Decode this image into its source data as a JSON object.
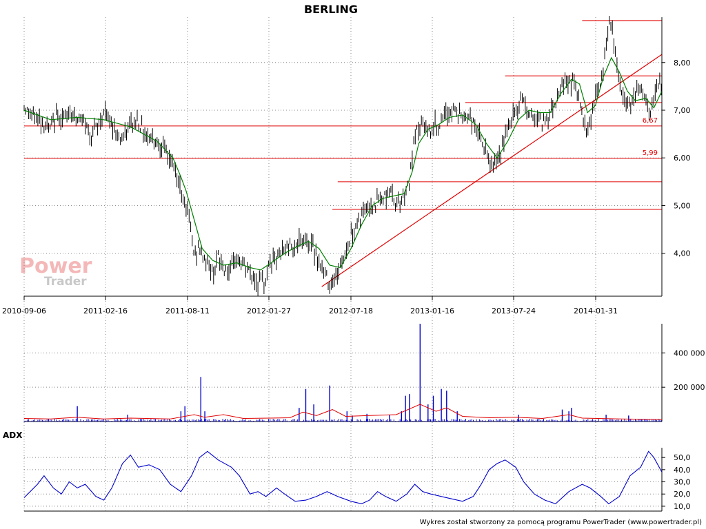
{
  "title": "BERLING",
  "footer": "Wykres został stworzony za pomocą programu PowerTrader (www.powertrader.pl)",
  "watermark": {
    "line1": "Power",
    "line2": "Trader"
  },
  "colors": {
    "price": "#000000",
    "sma": "#008000",
    "level": "#e00000",
    "volume": "#0000cc",
    "volume_avg": "#e00000",
    "adx": "#0000cc",
    "grid": "#888888"
  },
  "chart_data": [
    {
      "type": "line",
      "name": "price",
      "x_ticks": [
        "2010-09-06",
        "2011-02-16",
        "2011-08-11",
        "2012-01-27",
        "2012-07-18",
        "2013-01-16",
        "2013-07-24",
        "2014-01-31"
      ],
      "y_ticks": [
        "4,00",
        "5,00",
        "6,00",
        "7,00",
        "8,00"
      ],
      "ylim": [
        3.1,
        8.95
      ],
      "grid": true,
      "price_path": [
        [
          0,
          7.1
        ],
        [
          4,
          6.9
        ],
        [
          10,
          6.85
        ],
        [
          15,
          6.7
        ],
        [
          20,
          6.6
        ],
        [
          25,
          6.9
        ],
        [
          30,
          6.8
        ],
        [
          35,
          7.0
        ],
        [
          40,
          6.8
        ],
        [
          45,
          6.75
        ],
        [
          50,
          6.5
        ],
        [
          55,
          6.65
        ],
        [
          60,
          6.95
        ],
        [
          65,
          6.75
        ],
        [
          70,
          6.5
        ],
        [
          75,
          6.4
        ],
        [
          80,
          6.7
        ],
        [
          85,
          6.8
        ],
        [
          90,
          6.55
        ],
        [
          95,
          6.45
        ],
        [
          100,
          6.35
        ],
        [
          105,
          6.2
        ],
        [
          110,
          5.95
        ],
        [
          115,
          5.6
        ],
        [
          120,
          5.2
        ],
        [
          123,
          4.9
        ],
        [
          126,
          4.4
        ],
        [
          128,
          3.95
        ],
        [
          132,
          4.1
        ],
        [
          138,
          3.8
        ],
        [
          142,
          3.6
        ],
        [
          146,
          3.9
        ],
        [
          150,
          3.7
        ],
        [
          155,
          3.55
        ],
        [
          160,
          3.9
        ],
        [
          165,
          3.75
        ],
        [
          170,
          3.6
        ],
        [
          175,
          3.4
        ],
        [
          180,
          3.35
        ],
        [
          185,
          3.8
        ],
        [
          190,
          3.9
        ],
        [
          195,
          4.05
        ],
        [
          200,
          4.2
        ],
        [
          205,
          4.15
        ],
        [
          210,
          4.3
        ],
        [
          215,
          4.2
        ],
        [
          220,
          4.0
        ],
        [
          225,
          3.6
        ],
        [
          230,
          3.4
        ],
        [
          235,
          3.5
        ],
        [
          240,
          3.9
        ],
        [
          245,
          4.3
        ],
        [
          250,
          4.6
        ],
        [
          255,
          4.85
        ],
        [
          260,
          5.0
        ],
        [
          265,
          5.1
        ],
        [
          270,
          5.15
        ],
        [
          275,
          5.3
        ],
        [
          280,
          5.05
        ],
        [
          285,
          5.2
        ],
        [
          290,
          5.5
        ],
        [
          293,
          6.2
        ],
        [
          296,
          6.6
        ],
        [
          300,
          6.7
        ],
        [
          305,
          6.55
        ],
        [
          310,
          6.7
        ],
        [
          315,
          6.75
        ],
        [
          320,
          7.0
        ],
        [
          325,
          6.95
        ],
        [
          330,
          6.85
        ],
        [
          335,
          6.9
        ],
        [
          340,
          6.6
        ],
        [
          345,
          6.3
        ],
        [
          350,
          5.9
        ],
        [
          355,
          5.85
        ],
        [
          360,
          6.2
        ],
        [
          365,
          6.7
        ],
        [
          370,
          7.0
        ],
        [
          375,
          7.25
        ],
        [
          380,
          6.9
        ],
        [
          385,
          6.85
        ],
        [
          390,
          6.75
        ],
        [
          395,
          6.9
        ],
        [
          400,
          7.2
        ],
        [
          405,
          7.55
        ],
        [
          410,
          7.6
        ],
        [
          415,
          7.55
        ],
        [
          420,
          7.0
        ],
        [
          423,
          6.6
        ],
        [
          426,
          6.8
        ],
        [
          430,
          7.3
        ],
        [
          435,
          7.6
        ],
        [
          438,
          8.4
        ],
        [
          441,
          8.85
        ],
        [
          444,
          8.4
        ],
        [
          447,
          7.8
        ],
        [
          450,
          7.3
        ],
        [
          455,
          7.1
        ],
        [
          460,
          7.4
        ],
        [
          465,
          7.45
        ],
        [
          468,
          7.1
        ],
        [
          471,
          6.8
        ],
        [
          474,
          7.2
        ],
        [
          477,
          7.6
        ],
        [
          480,
          7.4
        ]
      ],
      "sma_path": [
        [
          0,
          7.0
        ],
        [
          20,
          6.8
        ],
        [
          40,
          6.85
        ],
        [
          60,
          6.8
        ],
        [
          80,
          6.65
        ],
        [
          100,
          6.35
        ],
        [
          112,
          6.0
        ],
        [
          118,
          5.6
        ],
        [
          122,
          5.3
        ],
        [
          128,
          4.7
        ],
        [
          134,
          4.1
        ],
        [
          142,
          3.85
        ],
        [
          150,
          3.75
        ],
        [
          160,
          3.8
        ],
        [
          170,
          3.7
        ],
        [
          178,
          3.65
        ],
        [
          186,
          3.8
        ],
        [
          196,
          4.0
        ],
        [
          206,
          4.15
        ],
        [
          214,
          4.25
        ],
        [
          222,
          4.1
        ],
        [
          230,
          3.75
        ],
        [
          238,
          3.7
        ],
        [
          246,
          4.1
        ],
        [
          254,
          4.6
        ],
        [
          262,
          5.0
        ],
        [
          270,
          5.15
        ],
        [
          278,
          5.2
        ],
        [
          286,
          5.25
        ],
        [
          292,
          5.7
        ],
        [
          297,
          6.3
        ],
        [
          304,
          6.6
        ],
        [
          312,
          6.7
        ],
        [
          320,
          6.85
        ],
        [
          330,
          6.9
        ],
        [
          340,
          6.7
        ],
        [
          348,
          6.3
        ],
        [
          356,
          6.0
        ],
        [
          364,
          6.35
        ],
        [
          372,
          6.8
        ],
        [
          380,
          7.0
        ],
        [
          388,
          6.95
        ],
        [
          396,
          6.95
        ],
        [
          404,
          7.35
        ],
        [
          412,
          7.65
        ],
        [
          418,
          7.55
        ],
        [
          424,
          6.95
        ],
        [
          430,
          7.1
        ],
        [
          436,
          7.7
        ],
        [
          442,
          8.1
        ],
        [
          448,
          7.8
        ],
        [
          454,
          7.4
        ],
        [
          460,
          7.2
        ],
        [
          468,
          7.25
        ],
        [
          474,
          7.05
        ],
        [
          480,
          7.4
        ]
      ],
      "horizontal_levels": [
        {
          "value": 8.88,
          "from": 420
        },
        {
          "value": 7.72,
          "from": 362
        },
        {
          "value": 7.16,
          "from": 332
        },
        {
          "value": 6.67,
          "from": 0,
          "label": "6,67"
        },
        {
          "value": 5.99,
          "from": 0,
          "label": "5,99"
        },
        {
          "value": 5.5,
          "from": 236
        },
        {
          "value": 4.92,
          "from": 232
        }
      ],
      "trendline": {
        "from": [
          224,
          3.3
        ],
        "to": [
          480,
          8.17
        ]
      }
    },
    {
      "type": "bar",
      "name": "volume",
      "y_ticks": [
        "200 000",
        "400 000"
      ],
      "ylim": [
        0,
        570000
      ],
      "spikes": [
        [
          40,
          90000
        ],
        [
          78,
          40000
        ],
        [
          118,
          60000
        ],
        [
          121,
          90000
        ],
        [
          133,
          260000
        ],
        [
          136,
          60000
        ],
        [
          207,
          80000
        ],
        [
          212,
          190000
        ],
        [
          218,
          100000
        ],
        [
          230,
          210000
        ],
        [
          243,
          60000
        ],
        [
          247,
          35000
        ],
        [
          258,
          45000
        ],
        [
          275,
          40000
        ],
        [
          284,
          60000
        ],
        [
          287,
          150000
        ],
        [
          290,
          160000
        ],
        [
          298,
          570000
        ],
        [
          304,
          100000
        ],
        [
          308,
          150000
        ],
        [
          314,
          190000
        ],
        [
          318,
          180000
        ],
        [
          326,
          60000
        ],
        [
          372,
          40000
        ],
        [
          405,
          70000
        ],
        [
          410,
          60000
        ],
        [
          412,
          80000
        ],
        [
          438,
          40000
        ],
        [
          455,
          35000
        ]
      ],
      "avg_path": [
        [
          0,
          18000
        ],
        [
          20,
          15000
        ],
        [
          40,
          25000
        ],
        [
          60,
          15000
        ],
        [
          80,
          20000
        ],
        [
          110,
          15000
        ],
        [
          128,
          40000
        ],
        [
          136,
          25000
        ],
        [
          150,
          40000
        ],
        [
          165,
          18000
        ],
        [
          185,
          20000
        ],
        [
          200,
          22000
        ],
        [
          210,
          55000
        ],
        [
          220,
          35000
        ],
        [
          232,
          70000
        ],
        [
          242,
          30000
        ],
        [
          260,
          35000
        ],
        [
          280,
          40000
        ],
        [
          298,
          100000
        ],
        [
          310,
          60000
        ],
        [
          318,
          80000
        ],
        [
          330,
          30000
        ],
        [
          350,
          22000
        ],
        [
          370,
          25000
        ],
        [
          390,
          18000
        ],
        [
          410,
          40000
        ],
        [
          420,
          20000
        ],
        [
          450,
          15000
        ],
        [
          480,
          12000
        ]
      ]
    },
    {
      "type": "line",
      "name": "ADX",
      "label": "ADX",
      "y_ticks": [
        "10,0",
        "20,0",
        "30,0",
        "40,0",
        "50,0"
      ],
      "ylim": [
        6,
        58
      ],
      "values_path": [
        [
          0,
          17
        ],
        [
          10,
          28
        ],
        [
          15,
          35
        ],
        [
          22,
          25
        ],
        [
          28,
          20
        ],
        [
          34,
          30
        ],
        [
          40,
          25
        ],
        [
          46,
          28
        ],
        [
          54,
          18
        ],
        [
          60,
          15
        ],
        [
          66,
          25
        ],
        [
          74,
          45
        ],
        [
          80,
          52
        ],
        [
          86,
          42
        ],
        [
          94,
          44
        ],
        [
          102,
          40
        ],
        [
          110,
          28
        ],
        [
          118,
          22
        ],
        [
          126,
          35
        ],
        [
          132,
          50
        ],
        [
          138,
          55
        ],
        [
          146,
          48
        ],
        [
          156,
          42
        ],
        [
          162,
          35
        ],
        [
          170,
          20
        ],
        [
          176,
          22
        ],
        [
          182,
          18
        ],
        [
          190,
          25
        ],
        [
          196,
          20
        ],
        [
          204,
          14
        ],
        [
          212,
          15
        ],
        [
          220,
          18
        ],
        [
          228,
          22
        ],
        [
          236,
          18
        ],
        [
          246,
          14
        ],
        [
          254,
          12
        ],
        [
          260,
          15
        ],
        [
          266,
          22
        ],
        [
          272,
          18
        ],
        [
          280,
          14
        ],
        [
          288,
          20
        ],
        [
          294,
          28
        ],
        [
          300,
          22
        ],
        [
          306,
          20
        ],
        [
          314,
          18
        ],
        [
          322,
          16
        ],
        [
          330,
          14
        ],
        [
          338,
          18
        ],
        [
          344,
          28
        ],
        [
          350,
          40
        ],
        [
          356,
          45
        ],
        [
          362,
          48
        ],
        [
          370,
          42
        ],
        [
          376,
          30
        ],
        [
          384,
          20
        ],
        [
          392,
          15
        ],
        [
          400,
          12
        ],
        [
          410,
          22
        ],
        [
          420,
          28
        ],
        [
          426,
          25
        ],
        [
          434,
          18
        ],
        [
          440,
          12
        ],
        [
          448,
          18
        ],
        [
          456,
          35
        ],
        [
          464,
          42
        ],
        [
          470,
          55
        ],
        [
          474,
          50
        ],
        [
          480,
          38
        ]
      ]
    }
  ]
}
